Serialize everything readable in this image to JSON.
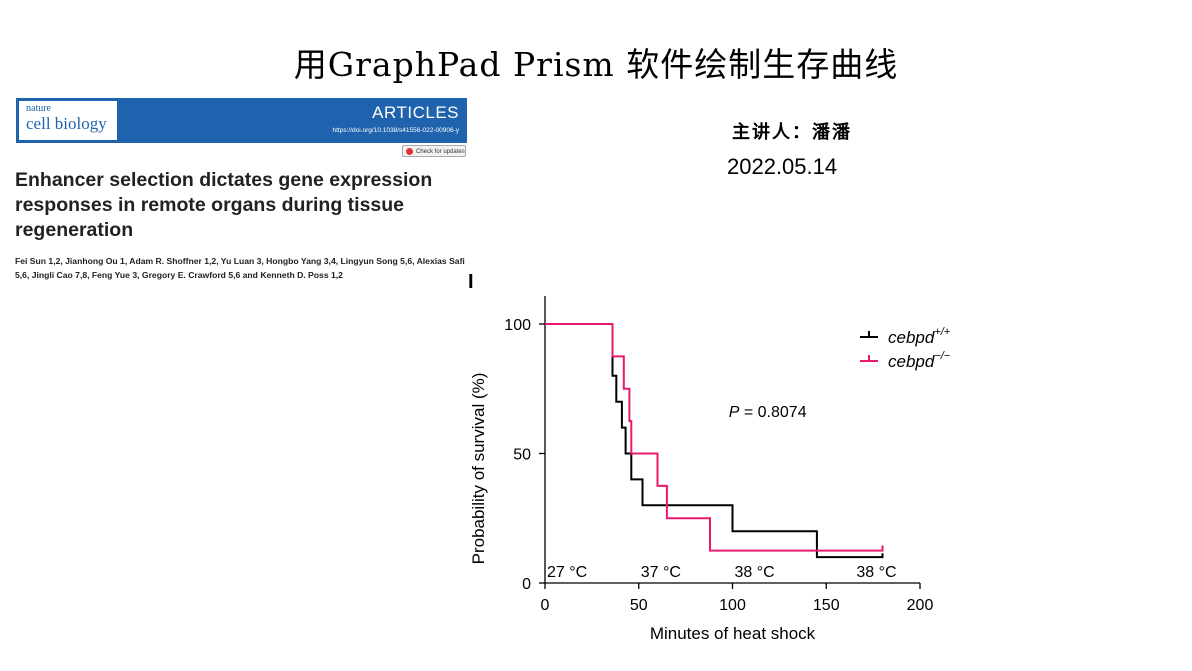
{
  "slide": {
    "title": "用GraphPad Prism 软件绘制生存曲线",
    "presenter": "主讲人：潘潘",
    "date": "2022.05.14"
  },
  "paper": {
    "journal_small": "nature",
    "journal_big": "cell biology",
    "section": "ARTICLES",
    "doi": "https://doi.org/10.1038/s41556-022-00906-y",
    "check_button": "Check for updates",
    "title": "Enhancer selection dictates gene expression responses in remote organs during tissue regeneration",
    "authors": "Fei Sun 1,2, Jianhong Ou 1, Adam R. Shoffner 1,2, Yu Luan 3, Hongbo Yang 3,4, Lingyun Song 5,6, Alexias Safi 5,6, Jingli Cao 7,8, Feng Yue 3, Gregory E. Crawford 5,6 and Kenneth D. Poss 1,2"
  },
  "figure": {
    "panel_letter": "I"
  },
  "chart_data": {
    "type": "line",
    "step": true,
    "xlabel": "Minutes of heat shock",
    "ylabel": "Probability of survival (%)",
    "xlim": [
      0,
      200
    ],
    "ylim": [
      0,
      100
    ],
    "x_ticks": [
      "0",
      "50",
      "100",
      "150",
      "200"
    ],
    "y_ticks": [
      "0",
      "50",
      "100"
    ],
    "annotation": "P = 0.8074",
    "temperature_labels": [
      {
        "text": "27 °C",
        "x": 0
      },
      {
        "text": "37 °C",
        "x": 50
      },
      {
        "text": "38 °C",
        "x": 100
      },
      {
        "text": "38 °C",
        "x": 165
      }
    ],
    "legend_position": "top-right",
    "series": [
      {
        "name": "cebpd",
        "superscript": "+/+",
        "color": "#000000",
        "points": [
          [
            0,
            100
          ],
          [
            36,
            100
          ],
          [
            36,
            80
          ],
          [
            38,
            80
          ],
          [
            38,
            70
          ],
          [
            41,
            70
          ],
          [
            41,
            60
          ],
          [
            43,
            60
          ],
          [
            43,
            50
          ],
          [
            46,
            50
          ],
          [
            46,
            40
          ],
          [
            52,
            40
          ],
          [
            52,
            30
          ],
          [
            100,
            30
          ],
          [
            100,
            20
          ],
          [
            145,
            20
          ],
          [
            145,
            10
          ],
          [
            180,
            10
          ],
          [
            180,
            11.5
          ]
        ]
      },
      {
        "name": "cebpd",
        "superscript": "−/−",
        "color": "#e8196e",
        "points": [
          [
            0,
            100
          ],
          [
            36,
            100
          ],
          [
            36,
            87.5
          ],
          [
            42,
            87.5
          ],
          [
            42,
            75
          ],
          [
            45,
            75
          ],
          [
            45,
            62.5
          ],
          [
            46,
            62.5
          ],
          [
            46,
            50
          ],
          [
            60,
            50
          ],
          [
            60,
            37.5
          ],
          [
            65,
            37.5
          ],
          [
            65,
            25
          ],
          [
            88,
            25
          ],
          [
            88,
            12.5
          ],
          [
            180,
            12.5
          ],
          [
            180,
            14.5
          ]
        ]
      }
    ]
  }
}
